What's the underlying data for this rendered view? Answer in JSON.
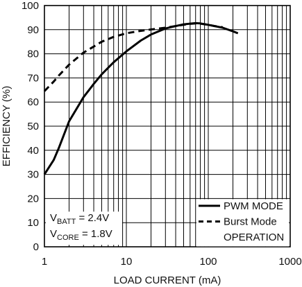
{
  "chart_data": {
    "type": "line",
    "xlabel": "LOAD CURRENT (mA)",
    "ylabel": "EFFICIENCY (%)",
    "xscale": "log",
    "xlim": [
      1,
      1000
    ],
    "ylim": [
      0,
      100
    ],
    "grid": true,
    "x_ticks": [
      "1",
      "10",
      "100",
      "1000"
    ],
    "y_ticks": [
      "0",
      "10",
      "20",
      "30",
      "40",
      "50",
      "60",
      "70",
      "80",
      "90",
      "100"
    ],
    "legend_position": "bottom-right",
    "series": [
      {
        "name": "PWM MODE",
        "style": "solid",
        "x": [
          1,
          1.3,
          1.5,
          2,
          3,
          4,
          5,
          7,
          10,
          15,
          20,
          30,
          40,
          50,
          60,
          70,
          80,
          100,
          150,
          200,
          230
        ],
        "y": [
          30,
          36,
          41,
          52,
          62,
          67.5,
          71.5,
          76.5,
          81,
          85.5,
          88,
          90.5,
          91.5,
          92.2,
          92.5,
          92.7,
          92.6,
          92,
          90.8,
          89.3,
          88.5
        ]
      },
      {
        "name": "Burst Mode OPERATION",
        "style": "dashed",
        "x": [
          1,
          1.3,
          1.5,
          2,
          3,
          4,
          5,
          7,
          10,
          15,
          20,
          30,
          40,
          50,
          60,
          70,
          80,
          100,
          120,
          150
        ],
        "y": [
          64.5,
          68.5,
          71,
          75.5,
          80.5,
          83,
          85,
          87,
          88.5,
          89.5,
          90.1,
          90.8,
          91.5,
          92,
          92.4,
          92.6,
          92.5,
          92,
          91.5,
          91
        ]
      }
    ],
    "legend": [
      "PWM MODE",
      "Burst Mode",
      "OPERATION"
    ],
    "annotation": {
      "line1_main": "V",
      "line1_sub": "BATT",
      "line1_value": " = 2.4V",
      "line2_main": "V",
      "line2_sub": "CORE",
      "line2_value": " = 1.8V"
    }
  }
}
